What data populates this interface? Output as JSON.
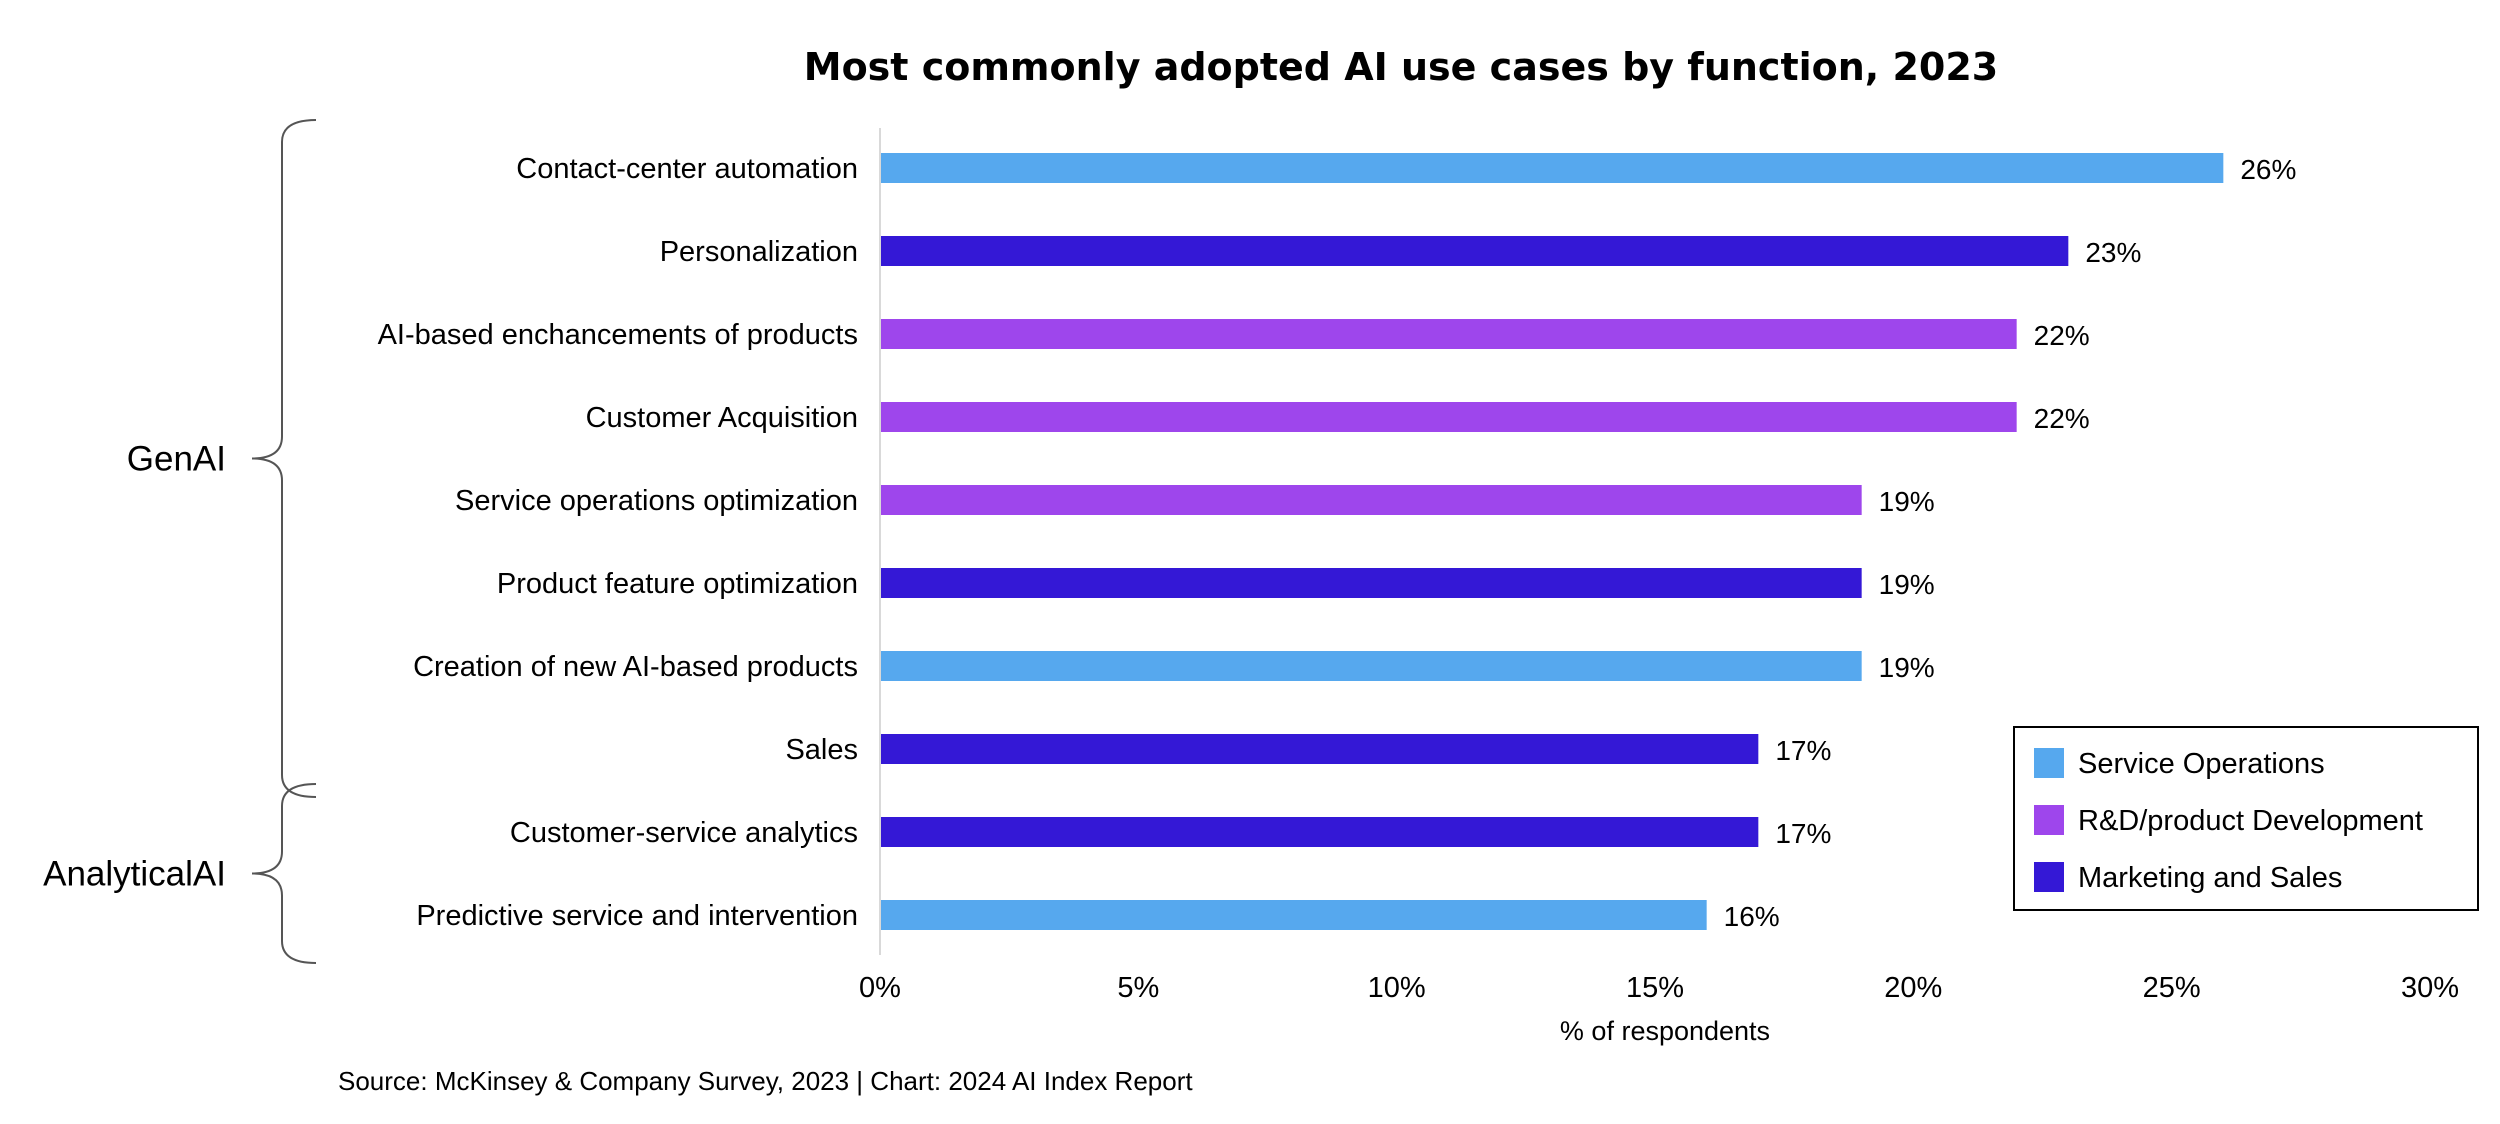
{
  "chart_data": {
    "type": "bar",
    "orientation": "horizontal",
    "title": "Most commonly adopted AI use cases by function, 2023",
    "xlabel": "% of respondents",
    "ylabel": "",
    "xlim": [
      0,
      30
    ],
    "x_ticks": [
      "0%",
      "5%",
      "10%",
      "15%",
      "20%",
      "25%",
      "30%"
    ],
    "grid": false,
    "legend_position": "bottom-right",
    "categories": [
      "Contact-center automation",
      "Personalization",
      "AI-based enchancements of products",
      "Customer Acquisition",
      "Service operations optimization",
      "Product feature optimization",
      "Creation of new AI-based products",
      "Sales",
      "Customer-service analytics",
      "Predictive service and intervention"
    ],
    "values": [
      26,
      23,
      22,
      22,
      19,
      19,
      19,
      17,
      17,
      16
    ],
    "value_labels": [
      "26%",
      "23%",
      "22%",
      "22%",
      "19%",
      "19%",
      "19%",
      "17%",
      "17%",
      "16%"
    ],
    "functions": [
      "Service Operations",
      "Marketing and Sales",
      "R&D/product Development",
      "R&D/product Development",
      "R&D/product Development",
      "Marketing and Sales",
      "Service Operations",
      "Marketing and Sales",
      "Marketing and Sales",
      "Service Operations"
    ],
    "legend": [
      {
        "name": "Service Operations",
        "color": "#56A8EE"
      },
      {
        "name": "R&D/product Development",
        "color": "#9E46EC"
      },
      {
        "name": "Marketing and Sales",
        "color": "#3418D6"
      }
    ],
    "groups": [
      {
        "name": "GenAI",
        "first_index": 0,
        "last_index": 7
      },
      {
        "name": "AnalyticalAI",
        "first_index": 8,
        "last_index": 9
      }
    ],
    "source": "Source: McKinsey & Company Survey, 2023 | Chart: 2024 AI Index Report"
  }
}
